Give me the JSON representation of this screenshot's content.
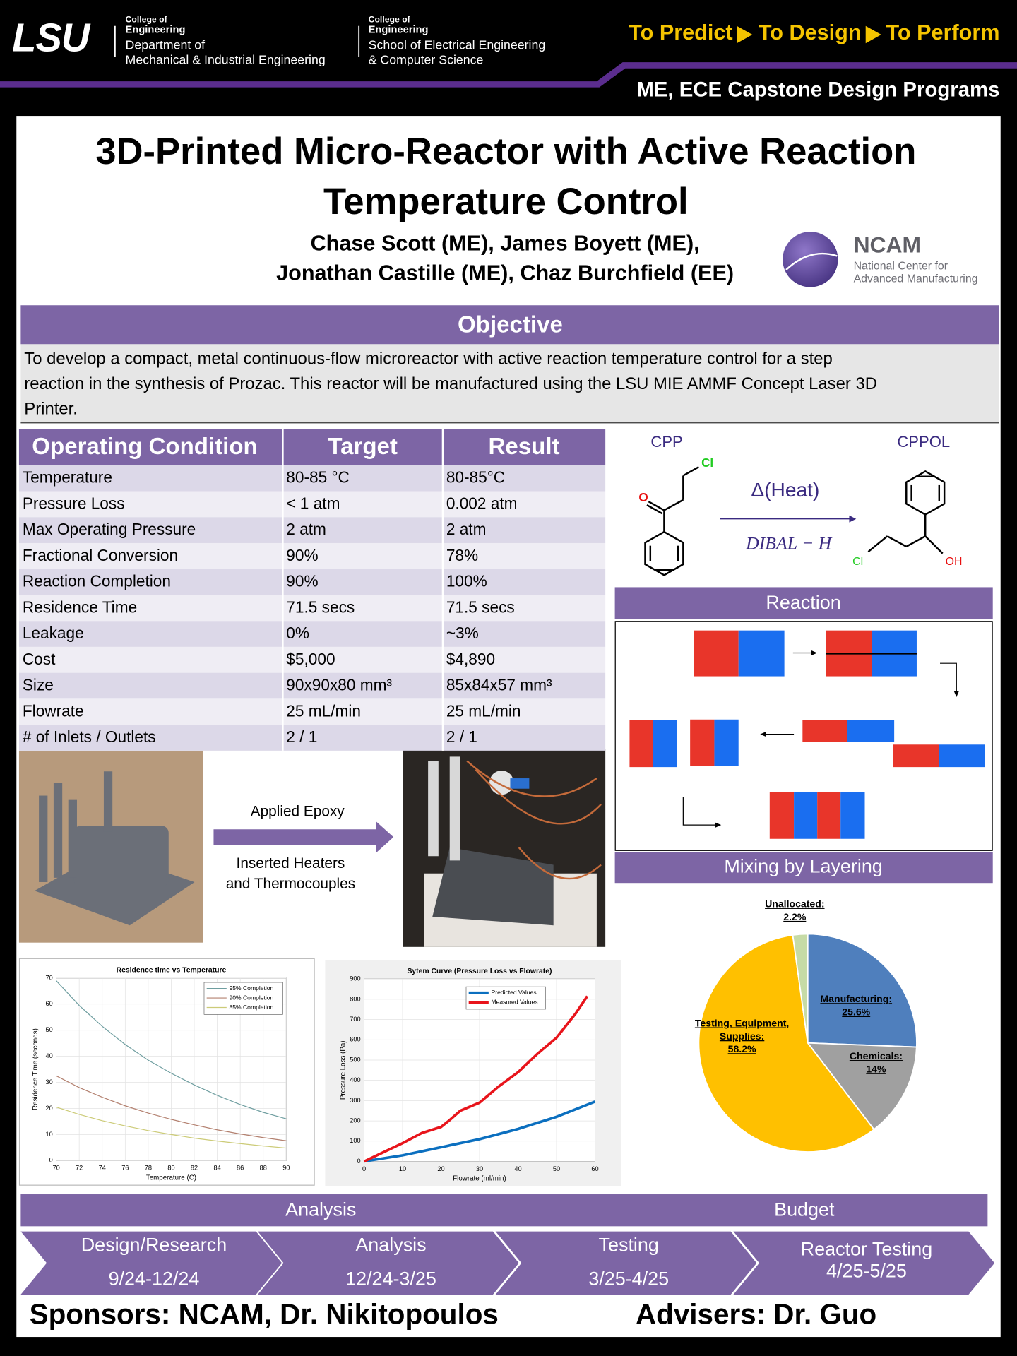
{
  "header": {
    "logo": "LSU",
    "unit1": [
      "College of",
      "Engineering",
      "Department of",
      "Mechanical & Industrial Engineering"
    ],
    "unit2": [
      "College of",
      "Engineering",
      "School of Electrical Engineering",
      "& Computer Science"
    ],
    "tagline": [
      "To Predict",
      "To Design",
      "To Perform"
    ],
    "program": "ME, ECE Capstone Design Programs"
  },
  "title": [
    "3D-Printed Micro-Reactor with Active Reaction",
    "Temperature Control"
  ],
  "authors": [
    "Chase Scott (ME), James Boyett (ME),",
    "Jonathan Castille (ME), Chaz Burchfield (EE)"
  ],
  "sponsor_logo": {
    "name": "NCAM",
    "subtitle": [
      "National Center for",
      "Advanced Manufacturing"
    ]
  },
  "objective": {
    "heading": "Objective",
    "text": [
      "To develop a compact, metal continuous-flow microreactor with active reaction temperature control for a step",
      "reaction in the synthesis of Prozac. This reactor will be manufactured using the LSU MIE AMMF Concept Laser 3D",
      "Printer."
    ]
  },
  "table": {
    "headers": [
      "Operating Condition",
      "Target",
      "Result"
    ],
    "rows": [
      [
        "Temperature",
        "80-85 °C",
        "80-85°C"
      ],
      [
        "Pressure Loss",
        "< 1 atm",
        "0.002 atm"
      ],
      [
        "Max Operating Pressure",
        "2 atm",
        "2 atm"
      ],
      [
        "Fractional Conversion",
        "90%",
        "78%"
      ],
      [
        "Reaction Completion",
        "90%",
        "100%"
      ],
      [
        "Residence Time",
        "71.5 secs",
        "71.5 secs"
      ],
      [
        "Leakage",
        "0%",
        "~3%"
      ],
      [
        "Cost",
        "$5,000",
        "$4,890"
      ],
      [
        "Size",
        "90x90x80 mm³",
        "85x84x57 mm³"
      ],
      [
        "Flowrate",
        "25 mL/min",
        "25 mL/min"
      ],
      [
        "# of Inlets / Outlets",
        "2 / 1",
        "2 / 1"
      ]
    ]
  },
  "reaction": {
    "reactant": "CPP",
    "product": "CPPOL",
    "condition": "Δ(Heat)",
    "reagent": "DIBAL − H",
    "atoms": [
      "Cl",
      "O",
      "Cl",
      "OH"
    ],
    "heading": "Reaction"
  },
  "mixing": {
    "heading": "Mixing by Layering"
  },
  "process": {
    "step1": "Applied Epoxy",
    "step2": [
      "Inserted Heaters",
      "and Thermocouples"
    ]
  },
  "charts": {
    "residence": {
      "type": "line",
      "title": "Residence time vs Temperature",
      "x_label": "Temperature (C)",
      "y_label": "Residence Time (seconds)",
      "x": [
        70,
        72,
        74,
        76,
        78,
        80,
        82,
        84,
        86,
        88,
        90
      ],
      "xlim": [
        70,
        90
      ],
      "xticks": [
        70,
        72,
        74,
        76,
        78,
        80,
        82,
        84,
        86,
        88,
        90
      ],
      "ylim": [
        0,
        70
      ],
      "yticks": [
        0,
        10,
        20,
        30,
        40,
        50,
        60,
        70
      ],
      "grid": true,
      "legend": "top-right",
      "series": [
        {
          "name": "95% Completion",
          "color": "#6f9ea0",
          "values": [
            69,
            59.5,
            51.5,
            44.5,
            38.5,
            33.5,
            29,
            25,
            21.5,
            18.5,
            16
          ]
        },
        {
          "name": "90% Completion",
          "color": "#b3806f",
          "values": [
            32.5,
            28,
            24.3,
            21,
            18.2,
            15.8,
            13.7,
            11.8,
            10.2,
            8.8,
            7.6
          ]
        },
        {
          "name": "85% Completion",
          "color": "#cccb78",
          "values": [
            20.5,
            17.7,
            15.3,
            13.3,
            11.5,
            10,
            8.6,
            7.5,
            6.5,
            5.6,
            4.8
          ]
        }
      ]
    },
    "pressure": {
      "type": "line",
      "title": "Sytem Curve (Pressure Loss vs Flowrate)",
      "x_label": "Flowrate (ml/min)",
      "y_label": "Pressure Loss (Pa)",
      "xlim": [
        0,
        60
      ],
      "xticks": [
        0,
        10,
        20,
        30,
        40,
        50,
        60
      ],
      "ylim": [
        0,
        900
      ],
      "yticks": [
        0,
        100,
        200,
        300,
        400,
        500,
        600,
        700,
        800,
        900
      ],
      "grid": true,
      "legend": "top-center",
      "series": [
        {
          "name": "Predicted Values",
          "color": "#0b6fbf",
          "x": [
            0,
            10,
            20,
            30,
            40,
            50,
            60
          ],
          "values": [
            0,
            30,
            70,
            110,
            160,
            220,
            295
          ]
        },
        {
          "name": "Measured Values",
          "color": "#e8141b",
          "x": [
            0,
            5,
            10,
            15,
            20,
            22,
            25,
            30,
            35,
            40,
            45,
            50,
            55,
            58
          ],
          "values": [
            0,
            45,
            90,
            140,
            170,
            200,
            250,
            290,
            370,
            440,
            530,
            610,
            730,
            815
          ]
        }
      ]
    },
    "budget": {
      "type": "pie",
      "labels": [
        [
          "Manufacturing:"
        ],
        [
          "Chemicals:"
        ],
        [
          "Testing, Equipment,",
          "Supplies:"
        ],
        [
          "Unallocated:"
        ]
      ],
      "values": [
        25.6,
        14,
        58.2,
        2.2
      ],
      "value_labels": [
        "25.6%",
        "14%",
        "58.2%",
        "2.2%"
      ],
      "colors": [
        "#4f7fbd",
        "#a0a0a0",
        "#ffc000",
        "#c6dba6"
      ]
    }
  },
  "timeline": {
    "headers": [
      "Analysis",
      "Budget"
    ],
    "phases": [
      {
        "label": "Design/Research",
        "dates": "9/24-12/24"
      },
      {
        "label": "Analysis",
        "dates": "12/24-3/25"
      },
      {
        "label": "Testing",
        "dates": "3/25-4/25"
      },
      {
        "label": "Reactor Testing",
        "dates": "4/25-5/25"
      }
    ]
  },
  "footer": {
    "sponsors": "Sponsors: NCAM, Dr. Nikitopoulos",
    "advisers": "Advisers: Dr. Guo"
  }
}
